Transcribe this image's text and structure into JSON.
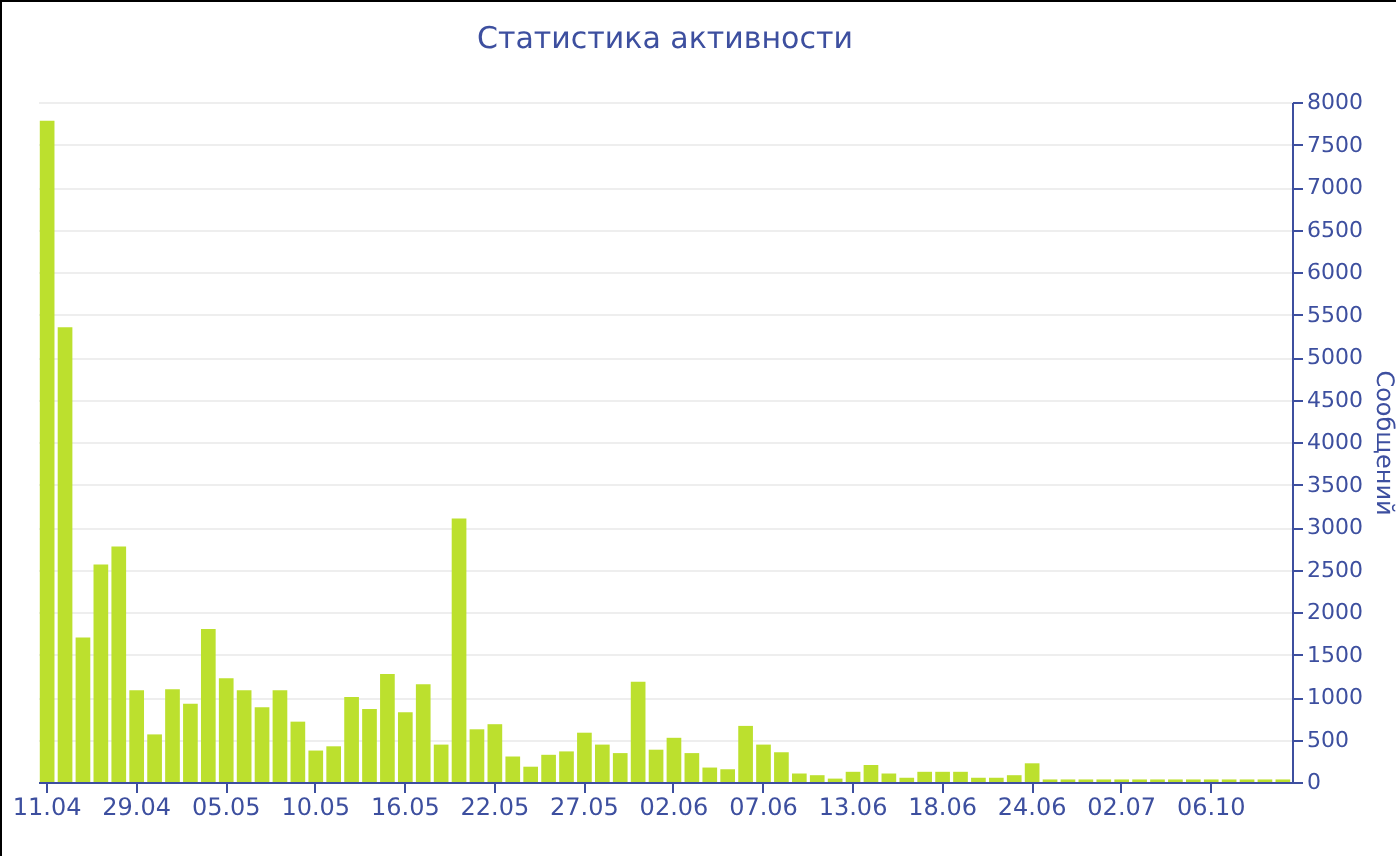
{
  "chart_data": {
    "type": "bar",
    "title": "Статистика активности",
    "ylabel": "Сообщений",
    "categories": [
      "11.04",
      null,
      null,
      null,
      null,
      "29.04",
      null,
      null,
      null,
      null,
      "05.05",
      null,
      null,
      null,
      null,
      "10.05",
      null,
      null,
      null,
      null,
      "16.05",
      null,
      null,
      null,
      null,
      "22.05",
      null,
      null,
      null,
      null,
      "27.05",
      null,
      null,
      null,
      null,
      "02.06",
      null,
      null,
      null,
      null,
      "07.06",
      null,
      null,
      null,
      null,
      "13.06",
      null,
      null,
      null,
      null,
      "18.06",
      null,
      null,
      null,
      null,
      "24.06",
      null,
      null,
      null,
      null,
      "02.07",
      null,
      null,
      null,
      null,
      "06.10",
      null,
      null,
      null,
      null
    ],
    "values": [
      7780,
      5350,
      1700,
      2560,
      2770,
      1080,
      560,
      1090,
      920,
      1800,
      1220,
      1080,
      880,
      1080,
      710,
      370,
      420,
      1000,
      860,
      1270,
      820,
      1150,
      440,
      3100,
      620,
      680,
      300,
      180,
      320,
      360,
      580,
      440,
      340,
      1180,
      380,
      520,
      340,
      170,
      150,
      660,
      440,
      350,
      100,
      80,
      40,
      120,
      200,
      100,
      50,
      120,
      120,
      120,
      50,
      50,
      80,
      220,
      30,
      30,
      30,
      30,
      30,
      30,
      30,
      30,
      30,
      30,
      30,
      30,
      30,
      30
    ],
    "color": "#bce02e",
    "ylim": [
      0,
      8000
    ],
    "yticks": [
      0,
      500,
      1000,
      1500,
      2000,
      2500,
      3000,
      3500,
      4000,
      4500,
      5000,
      5500,
      6000,
      6500,
      7000,
      7500,
      8000
    ],
    "grid": "y"
  }
}
